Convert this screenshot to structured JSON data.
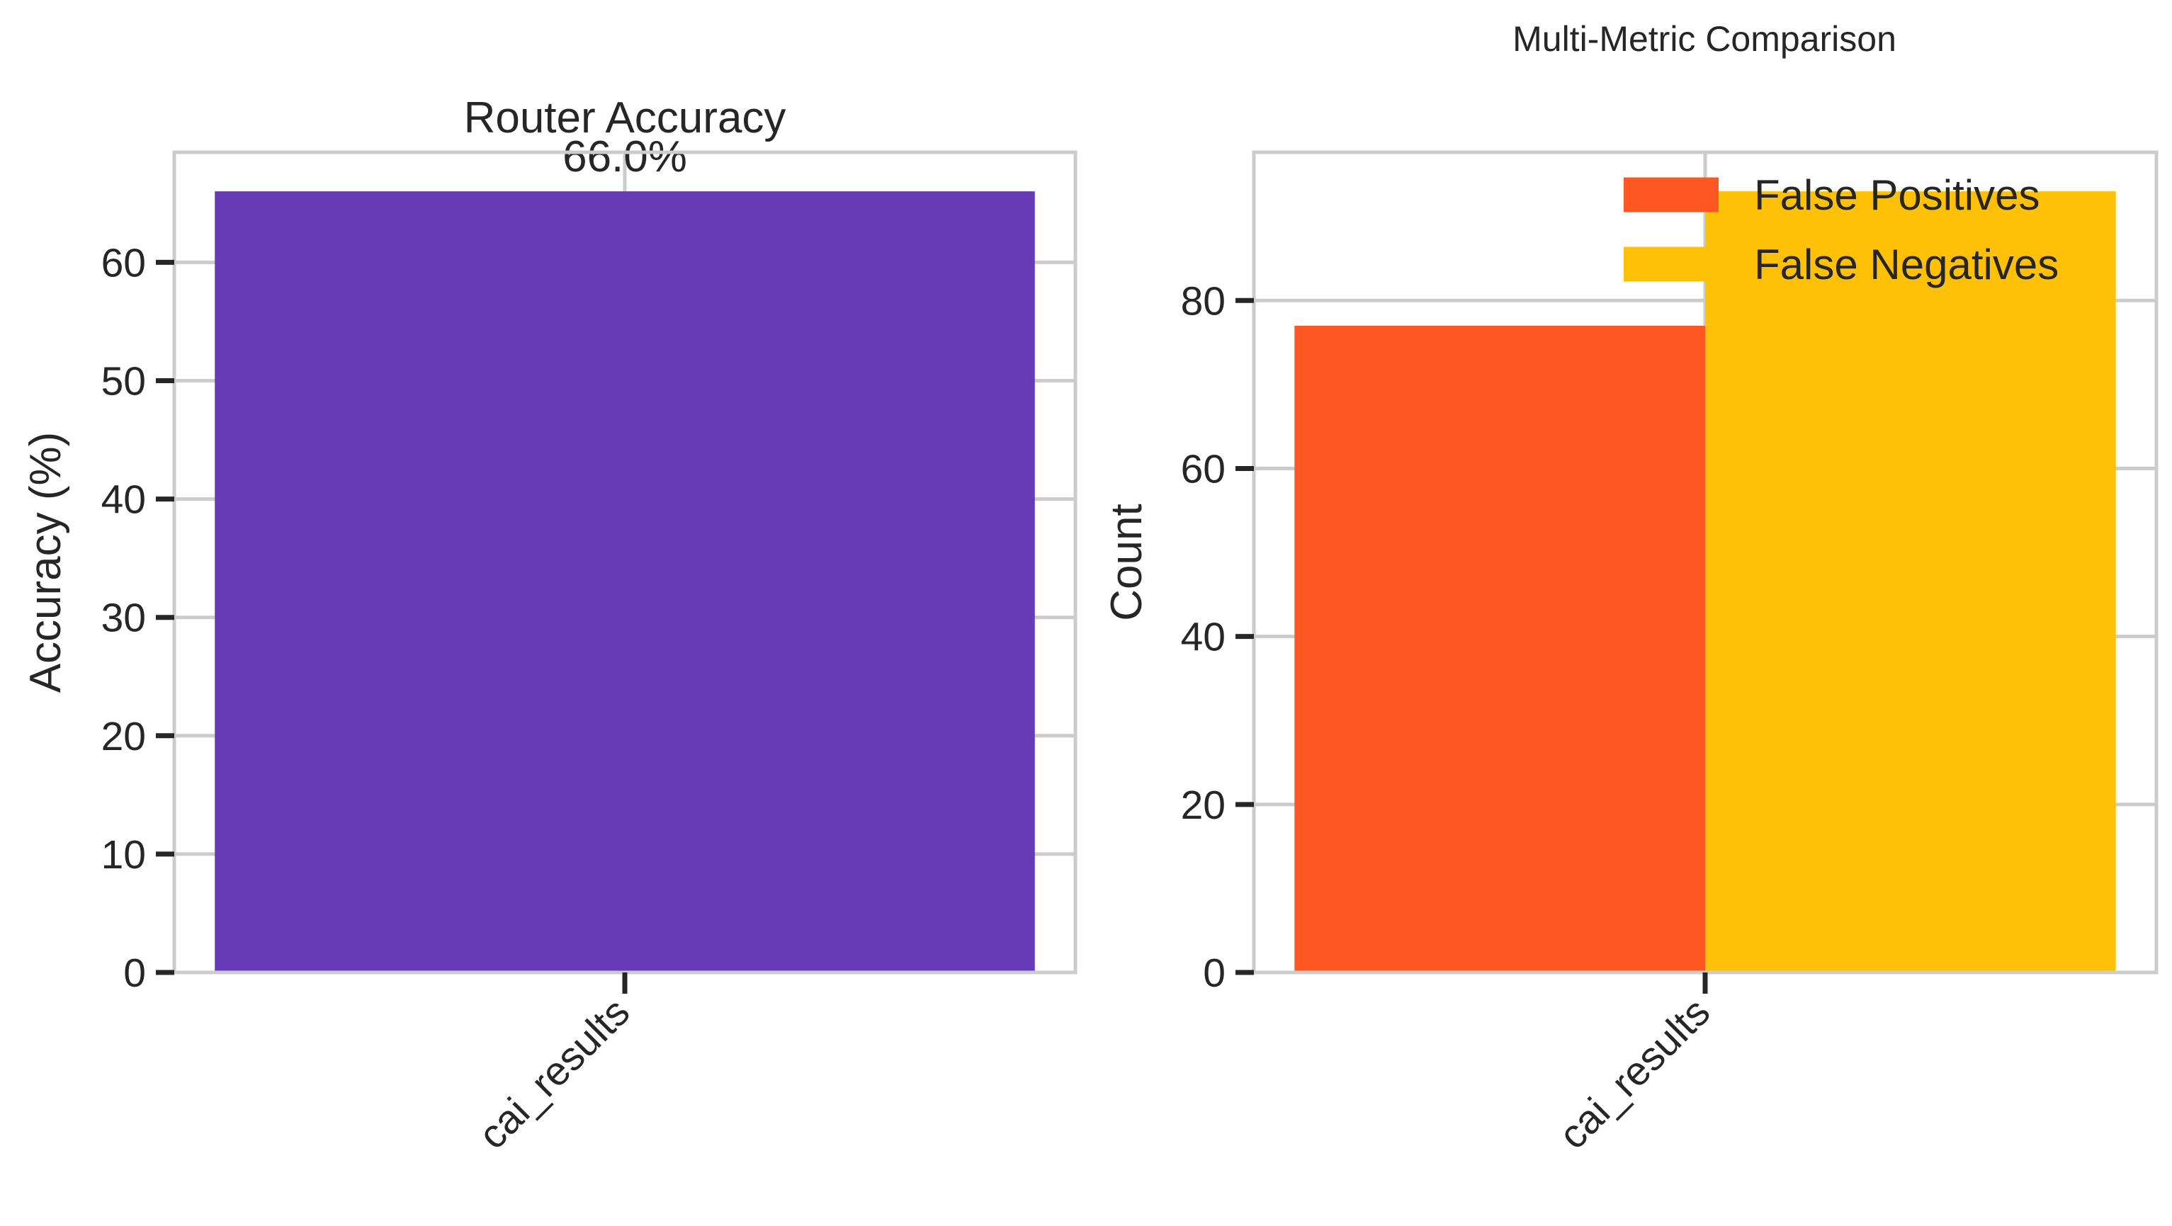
{
  "figure": {
    "suptitle": "Multi-Metric Comparison"
  },
  "chart_data": [
    {
      "type": "bar",
      "title": "Router Accuracy",
      "xlabel": "",
      "ylabel": "Accuracy (%)",
      "categories": [
        "cai_results"
      ],
      "values": [
        66.0
      ],
      "data_labels": [
        "66.0%"
      ],
      "ylim": [
        0,
        69.3
      ],
      "yticks": [
        0,
        10,
        20,
        30,
        40,
        50,
        60
      ],
      "ytick_labels": [
        "0",
        "10",
        "20",
        "30",
        "40",
        "50",
        "60"
      ],
      "grid": true,
      "color": "#673AB7"
    },
    {
      "type": "bar",
      "title": "",
      "xlabel": "",
      "ylabel": "Count",
      "categories": [
        "cai_results"
      ],
      "series": [
        {
          "name": "False Positives",
          "values": [
            77
          ],
          "color": "#FF5722"
        },
        {
          "name": "False Negatives",
          "values": [
            93
          ],
          "color": "#FFC107"
        }
      ],
      "ylim": [
        0,
        97.65
      ],
      "yticks": [
        0,
        20,
        40,
        60,
        80
      ],
      "ytick_labels": [
        "0",
        "20",
        "40",
        "60",
        "80"
      ],
      "grid": true,
      "legend": "upper right"
    }
  ]
}
